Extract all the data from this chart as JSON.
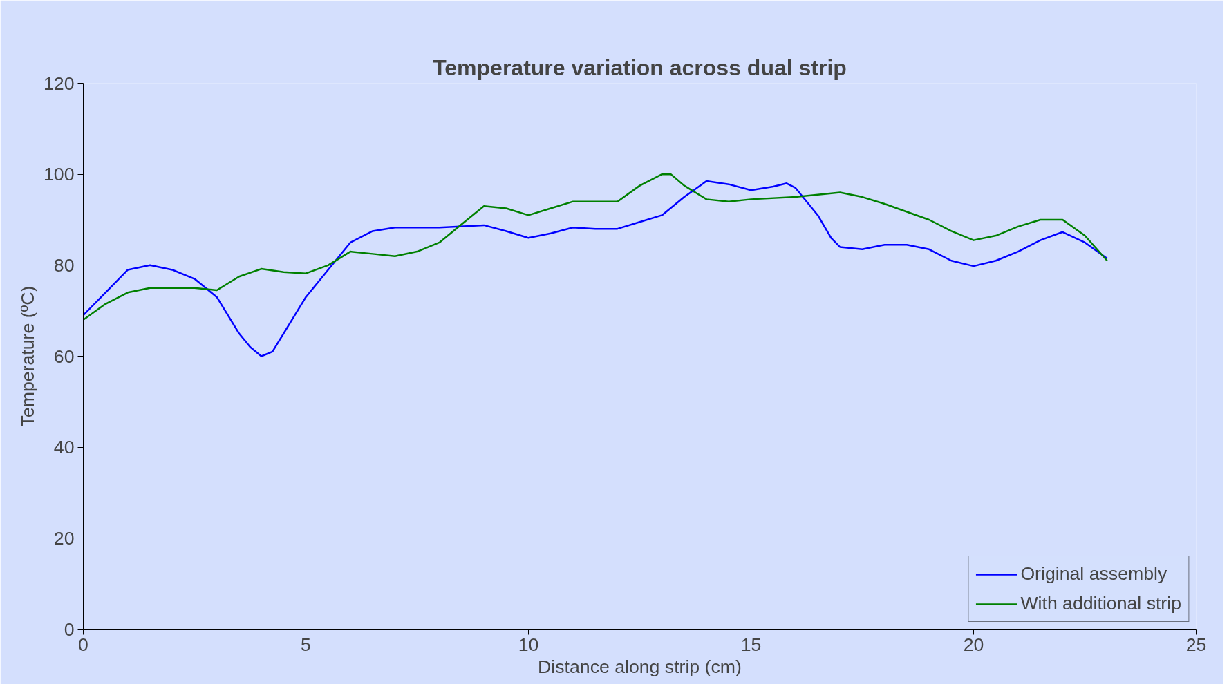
{
  "chart_data": {
    "type": "line",
    "title": "Temperature variation across dual strip",
    "xlabel": "Distance along strip (cm)",
    "ylabel": "Temperature (ºC)",
    "xlim": [
      0,
      25
    ],
    "xticks": [
      0,
      5,
      10,
      15,
      20,
      25
    ],
    "ylim": [
      0,
      120
    ],
    "yticks": [
      0,
      20,
      40,
      60,
      80,
      100,
      120
    ],
    "grid": false,
    "legend": "bottom right",
    "line_style": "solid",
    "marker": "none",
    "series": [
      {
        "name": "Original assembly",
        "color": "#0000ff",
        "x": [
          0,
          0.5,
          1,
          1.5,
          2,
          2.5,
          3,
          3.5,
          3.75,
          4,
          4.25,
          4.5,
          5,
          5.5,
          6,
          6.5,
          7,
          8,
          9,
          9.5,
          10,
          10.5,
          11,
          11.5,
          12,
          12.5,
          13,
          13.5,
          14,
          14.5,
          15,
          15.5,
          15.8,
          16,
          16.5,
          16.8,
          17,
          17.5,
          18,
          18.5,
          19,
          19.5,
          20,
          20.5,
          21,
          21.5,
          22,
          22.5,
          23
        ],
        "values": [
          69,
          74,
          79,
          80,
          79,
          77,
          73,
          65,
          62,
          60,
          61,
          65,
          73,
          79,
          85,
          87.5,
          88.3,
          88.3,
          88.8,
          87.5,
          86,
          87,
          88.3,
          88,
          88,
          89.5,
          91,
          95,
          98.5,
          97.8,
          96.5,
          97.3,
          98,
          97,
          91,
          86,
          84,
          83.5,
          84.5,
          84.5,
          83.5,
          81,
          79.8,
          81,
          83,
          85.5,
          87.3,
          85,
          81.5
        ]
      },
      {
        "name": "With additional strip",
        "color": "#008000",
        "x": [
          0,
          0.5,
          1,
          1.5,
          2,
          2.5,
          3,
          3.5,
          4,
          4.5,
          5,
          5.5,
          6,
          6.5,
          7,
          7.5,
          8,
          8.5,
          9,
          9.5,
          10,
          10.5,
          11,
          11.5,
          12,
          12.5,
          13,
          13.2,
          13.5,
          14,
          14.5,
          15,
          16,
          16.5,
          17,
          17.5,
          18,
          19,
          19.5,
          20,
          20.5,
          21,
          21.5,
          22,
          22.5,
          23
        ],
        "values": [
          68,
          71.5,
          74,
          75,
          75,
          75,
          74.5,
          77.5,
          79.2,
          78.5,
          78.2,
          80,
          83,
          82.5,
          82,
          83,
          85,
          89,
          93,
          92.5,
          91,
          92.5,
          94,
          94,
          94,
          97.5,
          100,
          100,
          97.5,
          94.5,
          94,
          94.5,
          95,
          95.5,
          96,
          95,
          93.5,
          90,
          87.5,
          85.5,
          86.5,
          88.5,
          90,
          90,
          86.5,
          81
        ]
      }
    ]
  }
}
